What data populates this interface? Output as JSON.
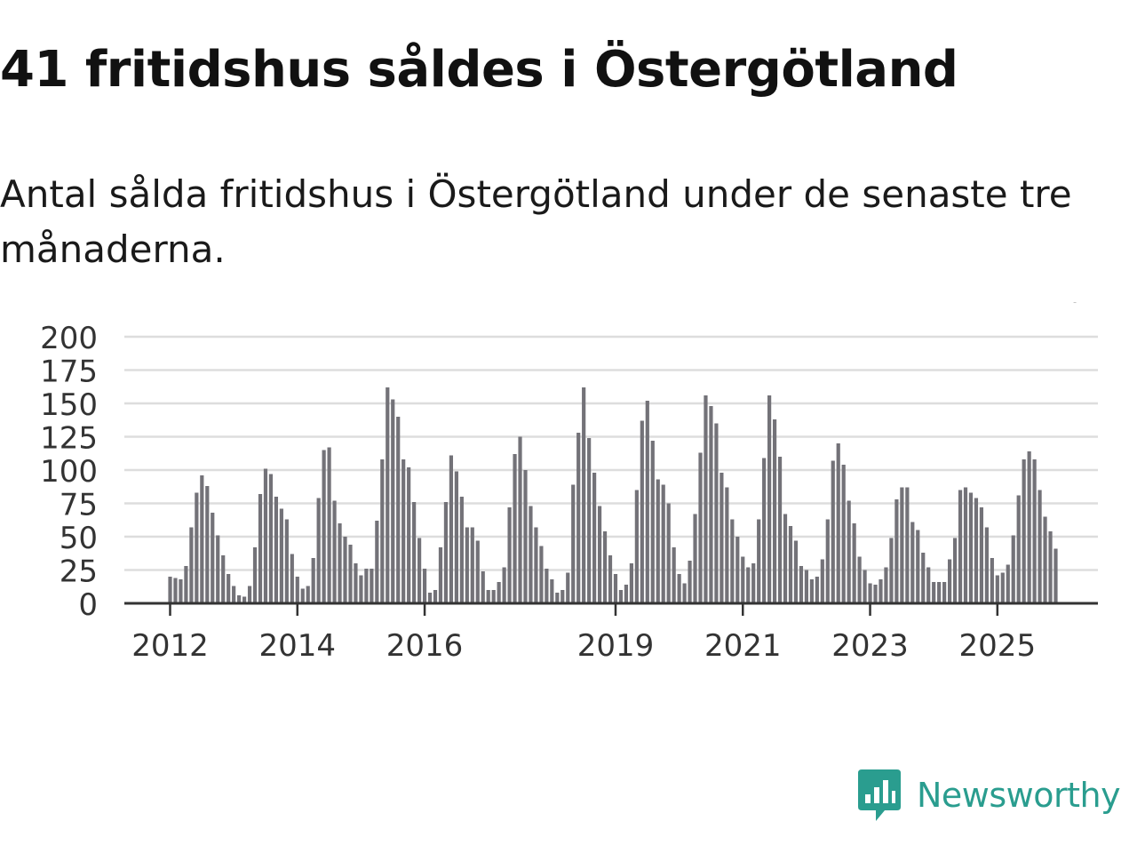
{
  "title": "41 fritidshus såldes i Östergötland",
  "subtitle": "Antal sålda fritidshus i Östergötland under de senaste tre månaderna.",
  "brand": {
    "name": "Newsworthy"
  },
  "colors": {
    "bar": "#737278",
    "highlight": "#1aa3a3",
    "grid": "#dddddd",
    "axis": "#333333",
    "text": "#333333",
    "brand": "#2a9d8f"
  },
  "chart_data": {
    "type": "bar",
    "title": "41 fritidshus såldes i Östergötland",
    "xlabel": "",
    "ylabel": "",
    "ylim": [
      0,
      200
    ],
    "yticks": [
      0,
      25,
      50,
      75,
      100,
      125,
      150,
      175,
      200
    ],
    "x_start": "2012-01",
    "xticks": [
      {
        "label": "2012",
        "index": 0
      },
      {
        "label": "2014",
        "index": 24
      },
      {
        "label": "2016",
        "index": 48
      },
      {
        "label": "2019",
        "index": 84
      },
      {
        "label": "2021",
        "index": 108
      },
      {
        "label": "2023",
        "index": 132
      },
      {
        "label": "2025",
        "index": 156
      }
    ],
    "values": [
      20,
      19,
      18,
      28,
      57,
      83,
      96,
      88,
      68,
      51,
      36,
      22,
      13,
      6,
      5,
      13,
      42,
      82,
      101,
      97,
      80,
      71,
      63,
      37,
      20,
      11,
      13,
      34,
      79,
      115,
      117,
      77,
      60,
      50,
      44,
      30,
      21,
      26,
      26,
      62,
      108,
      162,
      153,
      140,
      108,
      102,
      76,
      49,
      26,
      8,
      10,
      42,
      76,
      111,
      99,
      80,
      57,
      57,
      47,
      24,
      10,
      10,
      16,
      27,
      72,
      112,
      125,
      100,
      73,
      57,
      43,
      26,
      18,
      8,
      10,
      23,
      89,
      128,
      162,
      124,
      98,
      73,
      54,
      36,
      22,
      10,
      14,
      30,
      85,
      137,
      152,
      122,
      93,
      89,
      75,
      42,
      22,
      15,
      32,
      67,
      113,
      156,
      148,
      135,
      98,
      87,
      63,
      50,
      35,
      27,
      30,
      63,
      109,
      156,
      138,
      110,
      67,
      58,
      47,
      28,
      25,
      18,
      20,
      33,
      63,
      107,
      120,
      104,
      77,
      60,
      35,
      25,
      15,
      14,
      18,
      27,
      49,
      78,
      87,
      87,
      61,
      55,
      38,
      27,
      16,
      16,
      16,
      33,
      49,
      85,
      87,
      83,
      79,
      72,
      57,
      34,
      21,
      23,
      29,
      51,
      81,
      108,
      114,
      108,
      85,
      65,
      54,
      41
    ],
    "highlight_index": 172,
    "annotation": "41"
  }
}
